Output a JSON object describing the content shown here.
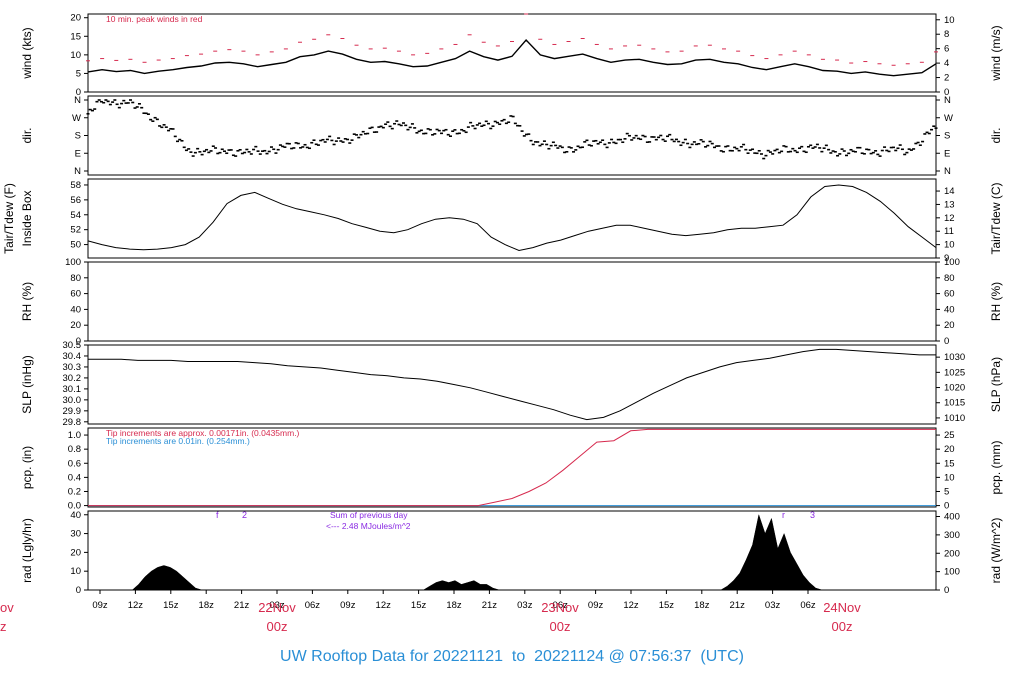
{
  "footer": {
    "prefix": "UW Rooftop Data for",
    "start": "20221121",
    "to_word": "to",
    "end": "20221124",
    "at": "@ 07:56:37",
    "tz": "(UTC)"
  },
  "colors": {
    "frame": "#000000",
    "peak_wind": "#d62a4e",
    "pcp_fine": "#d62a4e",
    "pcp_coarse": "#2a8fd6",
    "radiation_note": "#8a2be2",
    "date_label": "#d62a4e",
    "footer": "#2a8fd6"
  },
  "chart_data": [
    {
      "id": "wind",
      "type": "line",
      "ylabel_left": "wind (kts)",
      "ylabel_right": "wind (m/s)",
      "ylim": [
        0,
        21
      ],
      "yticks_left": [
        0,
        5,
        10,
        15,
        20
      ],
      "yticks_right": [
        0,
        2,
        4,
        6,
        8,
        10
      ],
      "annotation": "10 min. peak winds in red",
      "series": [
        {
          "name": "wind",
          "values": [
            5.4,
            6.0,
            5.5,
            5.8,
            5.0,
            5.6,
            6.0,
            6.6,
            7.0,
            7.8,
            8.0,
            7.6,
            6.8,
            7.4,
            8.0,
            9.5,
            10.0,
            11.0,
            10.2,
            8.8,
            8.0,
            8.2,
            7.6,
            6.8,
            7.0,
            8.0,
            9.0,
            11.0,
            9.5,
            8.6,
            9.6,
            14.0,
            10.0,
            9.0,
            9.6,
            10.2,
            9.0,
            8.0,
            8.6,
            8.8,
            8.0,
            7.4,
            7.6,
            8.6,
            8.8,
            8.0,
            7.6,
            6.6,
            6.0,
            6.8,
            7.6,
            6.8,
            5.8,
            5.6,
            5.0,
            5.4,
            4.8,
            4.4,
            4.8,
            5.2,
            7.6
          ]
        },
        {
          "name": "10 min. peak winds",
          "values": [
            8.4,
            9.0,
            8.5,
            8.8,
            8.0,
            8.6,
            9.0,
            9.8,
            10.2,
            11.0,
            11.4,
            11.0,
            10.0,
            10.8,
            11.6,
            13.4,
            14.2,
            15.4,
            14.4,
            12.6,
            11.6,
            11.8,
            11.0,
            10.0,
            10.4,
            11.6,
            12.8,
            15.4,
            13.4,
            12.4,
            13.6,
            21.0,
            14.2,
            12.8,
            13.6,
            14.4,
            12.8,
            11.6,
            12.4,
            12.6,
            11.6,
            10.8,
            11.0,
            12.4,
            12.6,
            11.6,
            11.0,
            9.8,
            9.0,
            10.0,
            11.0,
            10.0,
            8.8,
            8.6,
            7.8,
            8.2,
            7.6,
            7.2,
            7.6,
            8.0,
            10.8
          ]
        }
      ]
    },
    {
      "id": "dir",
      "type": "scatter",
      "ylabel": "dir.",
      "yticks_left": [
        "N",
        "W",
        "S",
        "E",
        "N"
      ],
      "yticks_right": [
        "N",
        "W",
        "S",
        "E",
        "N"
      ],
      "ylim": [
        0,
        360
      ],
      "series": [
        {
          "name": "direction",
          "values": [
            290,
            355,
            350,
            345,
            300,
            250,
            190,
            110,
            95,
            100,
            105,
            90,
            100,
            110,
            120,
            130,
            140,
            150,
            160,
            170,
            200,
            240,
            230,
            220,
            200,
            190,
            200,
            220,
            230,
            250,
            260,
            180,
            140,
            120,
            110,
            130,
            140,
            150,
            160,
            170,
            170,
            160,
            150,
            140,
            130,
            120,
            110,
            100,
            90,
            100,
            110,
            120,
            110,
            100,
            95,
            100,
            100,
            110,
            100,
            160,
            220
          ]
        }
      ]
    },
    {
      "id": "temp",
      "type": "line",
      "ylabel_left": [
        "Tair/Tdew (F)",
        "Inside Box"
      ],
      "ylabel_right": "Tair/Tdew (C)",
      "ylim": [
        48.2,
        58.8
      ],
      "yticks_left": [
        50,
        52,
        54,
        56,
        58
      ],
      "yticks_right": [
        9,
        10,
        11,
        12,
        13,
        14
      ],
      "series": [
        {
          "name": "Tair",
          "values": [
            50.5,
            50.0,
            49.6,
            49.4,
            49.3,
            49.4,
            49.6,
            50.0,
            51.0,
            53.0,
            55.5,
            56.6,
            57.0,
            56.2,
            55.4,
            54.8,
            54.4,
            54.0,
            53.5,
            52.8,
            52.3,
            51.8,
            51.6,
            52.0,
            52.8,
            53.4,
            53.6,
            53.4,
            52.8,
            51.0,
            50.0,
            49.2,
            49.6,
            50.2,
            50.6,
            51.2,
            51.8,
            52.2,
            52.6,
            52.6,
            52.2,
            51.8,
            51.4,
            51.2,
            51.4,
            51.6,
            52.0,
            52.2,
            52.2,
            52.4,
            52.6,
            54.0,
            56.4,
            57.8,
            58.0,
            57.8,
            57.0,
            55.8,
            54.2,
            52.4,
            51.0,
            49.6
          ]
        }
      ]
    },
    {
      "id": "rh",
      "type": "line",
      "ylabel": "RH (%)",
      "ylim": [
        0,
        100
      ],
      "yticks_left": [
        0,
        20,
        40,
        60,
        80,
        100
      ],
      "yticks_right": [
        0,
        20,
        40,
        60,
        80,
        100
      ],
      "series": []
    },
    {
      "id": "slp",
      "type": "line",
      "ylabel_left": "SLP (inHg)",
      "ylabel_right": "SLP (hPa)",
      "ylim": [
        29.78,
        30.5
      ],
      "yticks_left": [
        29.8,
        29.9,
        30.0,
        30.1,
        30.2,
        30.3,
        30.4,
        30.5
      ],
      "yticks_right": [
        1010,
        1015,
        1020,
        1025,
        1030
      ],
      "series": [
        {
          "name": "SLP",
          "values": [
            30.37,
            30.37,
            30.37,
            30.36,
            30.36,
            30.36,
            30.35,
            30.35,
            30.35,
            30.35,
            30.34,
            30.33,
            30.31,
            30.3,
            30.29,
            30.27,
            30.25,
            30.23,
            30.22,
            30.2,
            30.19,
            30.17,
            30.14,
            30.11,
            30.07,
            30.03,
            29.99,
            29.95,
            29.91,
            29.86,
            29.82,
            29.84,
            29.9,
            29.98,
            30.06,
            30.13,
            30.2,
            30.25,
            30.3,
            30.34,
            30.36,
            30.38,
            30.41,
            30.44,
            30.46,
            30.46,
            30.45,
            30.44,
            30.43,
            30.42,
            30.41,
            30.41
          ]
        }
      ]
    },
    {
      "id": "pcp",
      "type": "line",
      "ylabel_left": "pcp. (in)",
      "ylabel_right": "pcp. (mm)",
      "ylim": [
        -0.02,
        1.1
      ],
      "yticks_left": [
        0.0,
        0.2,
        0.4,
        0.6,
        0.8,
        1.0
      ],
      "yticks_right": [
        0,
        5,
        10,
        15,
        20,
        25
      ],
      "note_fine": "Tip increments are approx. 0.00171in. (0.0435mm.)",
      "note_coarse": "Tip increments are 0.01in. (0.254mm.)",
      "series": [
        {
          "name": "fine gauge",
          "values": [
            0,
            0,
            0,
            0,
            0,
            0,
            0,
            0,
            0,
            0,
            0,
            0,
            0,
            0,
            0,
            0,
            0,
            0,
            0,
            0,
            0,
            0,
            0,
            0,
            0.05,
            0.1,
            0.2,
            0.32,
            0.5,
            0.7,
            0.9,
            0.92,
            1.06,
            1.08,
            1.08,
            1.08,
            1.08,
            1.08,
            1.08,
            1.08,
            1.08,
            1.08,
            1.08,
            1.08,
            1.08,
            1.08,
            1.08,
            1.08,
            1.08,
            1.08,
            1.08
          ]
        },
        {
          "name": "coarse gauge",
          "values": [
            0,
            0,
            0,
            0,
            0,
            0,
            0,
            0,
            0,
            0,
            0,
            0,
            0,
            0,
            0,
            0,
            0,
            0,
            0,
            0,
            0,
            0,
            0,
            0,
            0,
            0,
            0,
            0,
            0,
            0,
            0,
            0,
            0,
            0,
            0,
            0,
            0,
            0,
            0,
            0,
            0,
            0,
            0,
            0,
            0,
            0,
            0,
            0,
            0,
            0,
            0
          ]
        }
      ]
    },
    {
      "id": "rad",
      "type": "area",
      "ylabel_left": "rad (Lgly/hr)",
      "ylabel_right": "rad (W/m^2)",
      "ylim": [
        0,
        42
      ],
      "yticks_left": [
        0,
        10,
        20,
        30,
        40
      ],
      "yticks_right": [
        0,
        100,
        200,
        300,
        400
      ],
      "note_sum": "Sum of previous day",
      "note_value": "<--- 2.48 MJoules/m^2",
      "marks": [
        "f",
        "2",
        "r",
        "3"
      ],
      "series": [
        {
          "name": "radiation",
          "values": [
            0,
            0,
            0,
            0,
            0,
            0,
            0,
            0,
            3,
            7,
            10,
            12,
            13,
            12,
            10,
            7,
            4,
            1,
            0,
            0,
            0,
            0,
            0,
            0,
            0,
            0,
            0,
            0,
            0,
            0,
            0,
            0,
            0,
            0,
            0,
            0,
            0,
            0,
            0,
            0,
            0,
            0,
            0,
            0,
            0,
            0,
            0,
            0,
            0,
            0,
            0,
            0,
            0,
            0,
            2,
            4,
            5,
            4,
            5,
            3,
            4,
            5,
            3,
            3,
            1,
            0,
            0,
            0,
            0,
            0,
            0,
            0,
            0,
            0,
            0,
            0,
            0,
            0,
            0,
            0,
            0,
            0,
            0,
            0,
            0,
            0,
            0,
            0,
            0,
            0,
            0,
            0,
            0,
            0,
            0,
            0,
            0,
            0,
            0,
            0,
            0,
            2,
            5,
            9,
            16,
            24,
            40,
            30,
            38,
            22,
            30,
            20,
            14,
            8,
            4,
            1,
            0,
            0,
            0,
            0,
            0,
            0,
            0,
            0,
            0,
            0,
            0,
            0,
            0,
            0,
            0,
            0,
            0,
            0,
            0
          ]
        }
      ]
    }
  ],
  "x_axis": {
    "hour_labels": [
      "09z",
      "12z",
      "15z",
      "18z",
      "21z",
      "03z",
      "06z",
      "09z",
      "12z",
      "15z",
      "18z",
      "21z",
      "03z",
      "06z",
      "09z",
      "12z",
      "15z",
      "18z",
      "21z",
      "03z",
      "06z"
    ],
    "date_labels": [
      {
        "date": "22Nov",
        "time": "00z"
      },
      {
        "date": "23Nov",
        "time": "00z"
      },
      {
        "date": "24Nov",
        "time": "00z"
      }
    ],
    "clipped_left": {
      "date": "ov",
      "time": "z"
    }
  }
}
